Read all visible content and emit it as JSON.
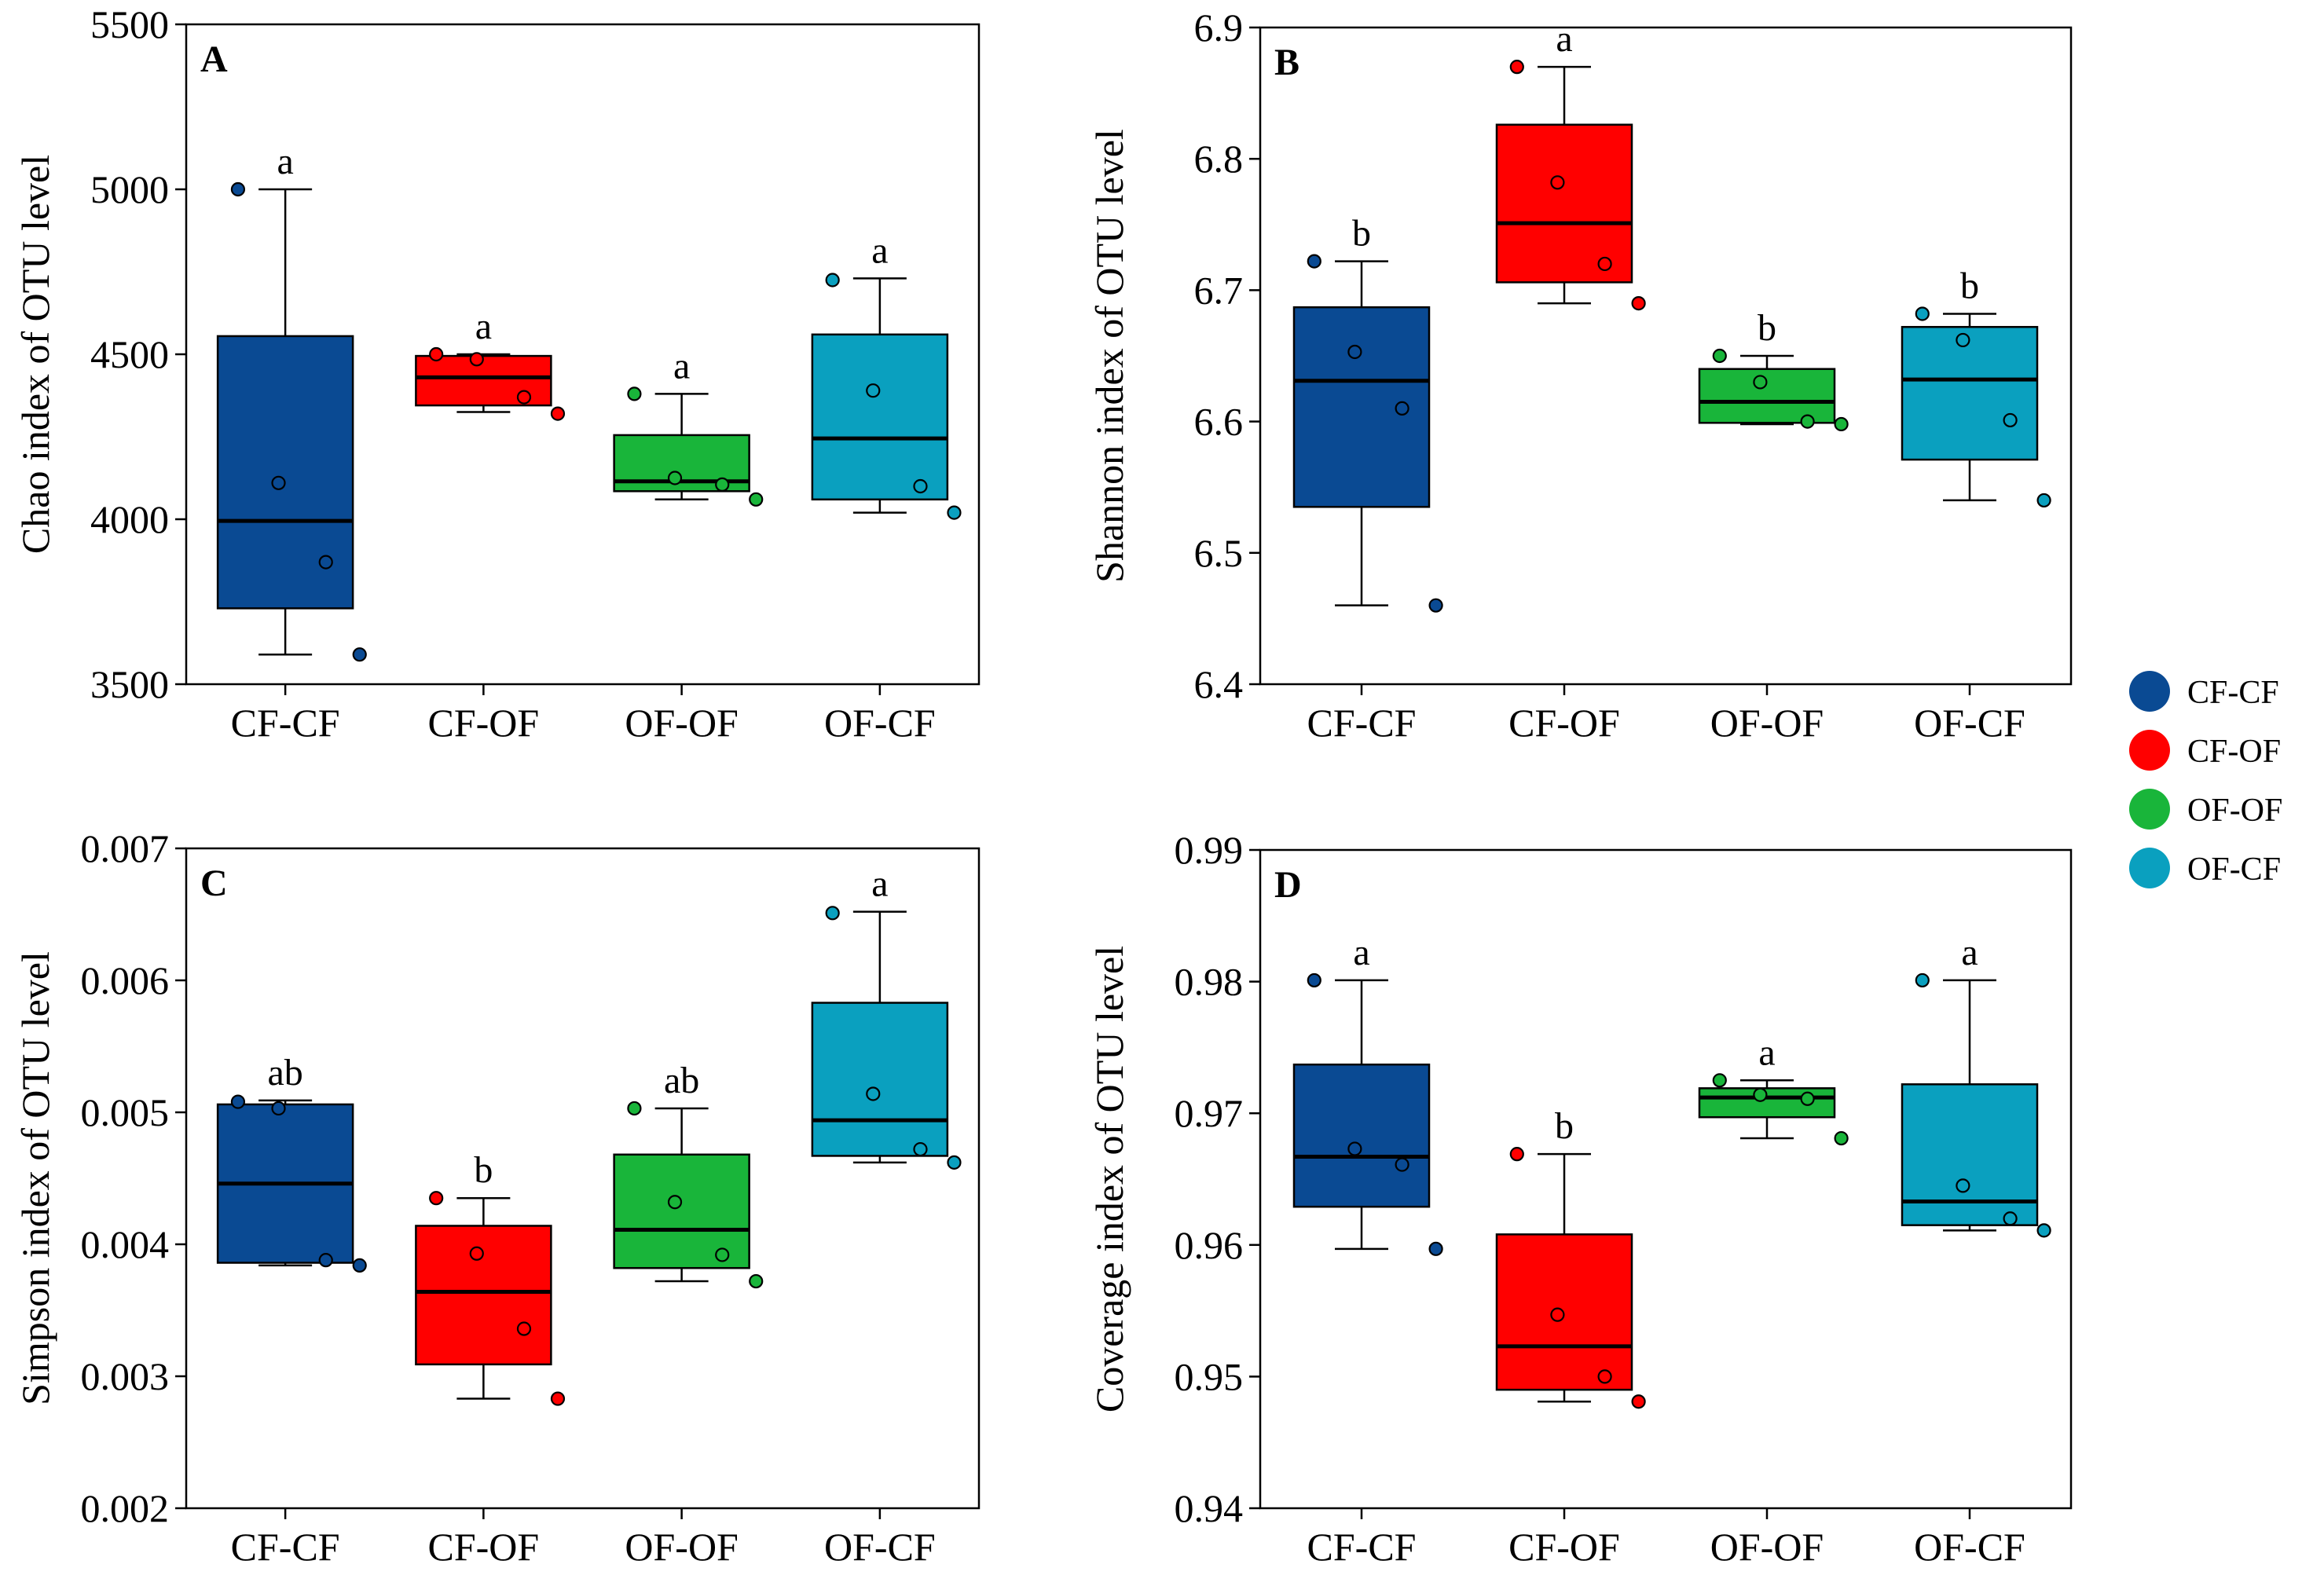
{
  "legend": [
    {
      "label": "CF-CF",
      "color": "#0a4a93"
    },
    {
      "label": "CF-OF",
      "color": "#ff0000"
    },
    {
      "label": "OF-OF",
      "color": "#19b53a"
    },
    {
      "label": "OF-CF",
      "color": "#0aa0bf"
    }
  ],
  "chart_data": [
    {
      "type": "box",
      "panel_label": "A",
      "ylabel": "Chao index of OTU level",
      "ylim": [
        3500,
        5500
      ],
      "yticks": [
        3500,
        4000,
        4500,
        5000,
        5500
      ],
      "ytick_labels": [
        "3500",
        "4000",
        "4500",
        "5000",
        "5500"
      ],
      "categories": [
        "CF-CF",
        "CF-OF",
        "OF-OF",
        "OF-CF"
      ],
      "groups": [
        {
          "name": "CF-CF",
          "q1": 3730,
          "median": 3995,
          "q3": 4555,
          "whisker_low": 3590,
          "whisker_high": 5000,
          "points": [
            5000,
            4110,
            3870,
            3590
          ],
          "significance": "a"
        },
        {
          "name": "CF-OF",
          "q1": 4345,
          "median": 4430,
          "q3": 4495,
          "whisker_low": 4325,
          "whisker_high": 4500,
          "points": [
            4500,
            4485,
            4370,
            4320
          ],
          "significance": "a"
        },
        {
          "name": "OF-OF",
          "q1": 4085,
          "median": 4115,
          "q3": 4255,
          "whisker_low": 4060,
          "whisker_high": 4380,
          "points": [
            4380,
            4125,
            4105,
            4060
          ],
          "significance": "a"
        },
        {
          "name": "OF-CF",
          "q1": 4060,
          "median": 4245,
          "q3": 4560,
          "whisker_low": 4020,
          "whisker_high": 4730,
          "points": [
            4725,
            4390,
            4100,
            4020
          ],
          "significance": "a"
        }
      ]
    },
    {
      "type": "box",
      "panel_label": "B",
      "ylabel": "Shannon index of OTU level",
      "ylim": [
        6.4,
        6.9
      ],
      "yticks": [
        6.4,
        6.5,
        6.6,
        6.7,
        6.8,
        6.9
      ],
      "ytick_labels": [
        "6.4",
        "6.5",
        "6.6",
        "6.7",
        "6.8",
        "6.9"
      ],
      "categories": [
        "CF-CF",
        "CF-OF",
        "OF-OF",
        "OF-CF"
      ],
      "groups": [
        {
          "name": "CF-CF",
          "q1": 6.535,
          "median": 6.631,
          "q3": 6.687,
          "whisker_low": 6.46,
          "whisker_high": 6.722,
          "points": [
            6.722,
            6.653,
            6.61,
            6.46
          ],
          "significance": "b"
        },
        {
          "name": "CF-OF",
          "q1": 6.706,
          "median": 6.751,
          "q3": 6.826,
          "whisker_low": 6.69,
          "whisker_high": 6.87,
          "points": [
            6.87,
            6.782,
            6.72,
            6.69
          ],
          "significance": "a"
        },
        {
          "name": "OF-OF",
          "q1": 6.599,
          "median": 6.615,
          "q3": 6.64,
          "whisker_low": 6.598,
          "whisker_high": 6.65,
          "points": [
            6.65,
            6.63,
            6.6,
            6.598
          ],
          "significance": "b"
        },
        {
          "name": "OF-CF",
          "q1": 6.571,
          "median": 6.632,
          "q3": 6.672,
          "whisker_low": 6.54,
          "whisker_high": 6.682,
          "points": [
            6.682,
            6.662,
            6.601,
            6.54
          ],
          "significance": "b"
        }
      ]
    },
    {
      "type": "box",
      "panel_label": "C",
      "ylabel": "Simpson index of OTU level",
      "ylim": [
        0.002,
        0.007
      ],
      "yticks": [
        0.002,
        0.003,
        0.004,
        0.005,
        0.006,
        0.007
      ],
      "ytick_labels": [
        "0.002",
        "0.003",
        "0.004",
        "0.005",
        "0.006",
        "0.007"
      ],
      "categories": [
        "CF-CF",
        "CF-OF",
        "OF-OF",
        "OF-CF"
      ],
      "groups": [
        {
          "name": "CF-CF",
          "q1": 0.00386,
          "median": 0.00446,
          "q3": 0.00506,
          "whisker_low": 0.00384,
          "whisker_high": 0.00509,
          "points": [
            0.00508,
            0.00503,
            0.00388,
            0.00384
          ],
          "significance": "ab"
        },
        {
          "name": "CF-OF",
          "q1": 0.00309,
          "median": 0.00364,
          "q3": 0.00414,
          "whisker_low": 0.00283,
          "whisker_high": 0.00435,
          "points": [
            0.00435,
            0.00393,
            0.00336,
            0.00283
          ],
          "significance": "b"
        },
        {
          "name": "OF-OF",
          "q1": 0.00382,
          "median": 0.00411,
          "q3": 0.00468,
          "whisker_low": 0.00372,
          "whisker_high": 0.00503,
          "points": [
            0.00503,
            0.00432,
            0.00392,
            0.00372
          ],
          "significance": "ab"
        },
        {
          "name": "OF-CF",
          "q1": 0.00467,
          "median": 0.00494,
          "q3": 0.00583,
          "whisker_low": 0.00462,
          "whisker_high": 0.00652,
          "points": [
            0.00651,
            0.00514,
            0.00472,
            0.00462
          ],
          "significance": "a"
        }
      ]
    },
    {
      "type": "box",
      "panel_label": "D",
      "ylabel": "Coverage index of OTU level",
      "ylim": [
        0.94,
        0.99
      ],
      "yticks": [
        0.94,
        0.95,
        0.96,
        0.97,
        0.98,
        0.99
      ],
      "ytick_labels": [
        "0.94",
        "0.95",
        "0.96",
        "0.97",
        "0.98",
        "0.99"
      ],
      "categories": [
        "CF-CF",
        "CF-OF",
        "OF-OF",
        "OF-CF"
      ],
      "groups": [
        {
          "name": "CF-CF",
          "q1": 0.9629,
          "median": 0.9667,
          "q3": 0.9737,
          "whisker_low": 0.9597,
          "whisker_high": 0.9801,
          "points": [
            0.9801,
            0.9673,
            0.9661,
            0.9597
          ],
          "significance": "a"
        },
        {
          "name": "CF-OF",
          "q1": 0.949,
          "median": 0.9523,
          "q3": 0.9608,
          "whisker_low": 0.9481,
          "whisker_high": 0.9669,
          "points": [
            0.9669,
            0.9547,
            0.95,
            0.9481
          ],
          "significance": "b"
        },
        {
          "name": "OF-OF",
          "q1": 0.9697,
          "median": 0.9712,
          "q3": 0.9719,
          "whisker_low": 0.9681,
          "whisker_high": 0.9725,
          "points": [
            0.9725,
            0.9714,
            0.9711,
            0.9681
          ],
          "significance": "a"
        },
        {
          "name": "OF-CF",
          "q1": 0.9615,
          "median": 0.9633,
          "q3": 0.9722,
          "whisker_low": 0.9611,
          "whisker_high": 0.9801,
          "points": [
            0.9801,
            0.9645,
            0.962,
            0.9611
          ],
          "significance": "a"
        }
      ]
    }
  ]
}
